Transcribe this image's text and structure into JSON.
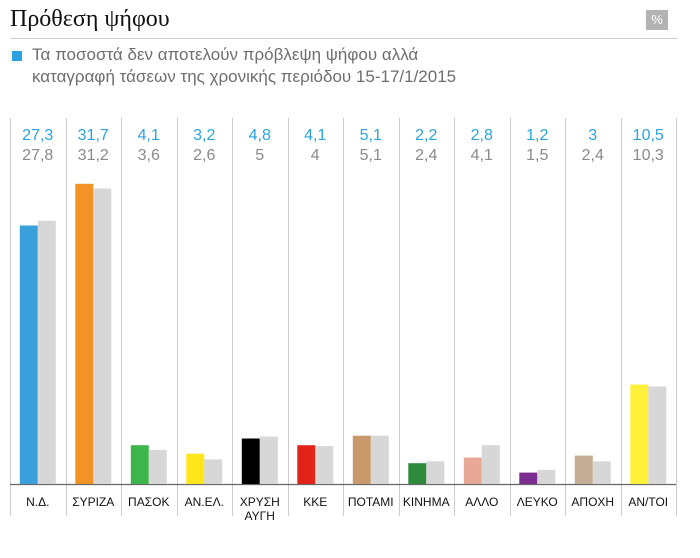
{
  "header": {
    "title": "Πρόθεση ψήφου",
    "badge": "%",
    "subtitle_line1": "Τα ποσοστά δεν αποτελούν πρόβλεψη ψήφου αλλά",
    "subtitle_line2": "καταγραφή τάσεων της χρονικής περιόδου 15-17/1/2015"
  },
  "colors": {
    "current_label": "#2aa3e0",
    "previous_label": "#8a8a8a",
    "previous_bar": "#d7d7d7",
    "grid": "#cccccc",
    "axis": "#666666"
  },
  "chart_data": {
    "type": "bar",
    "title": "Πρόθεση ψήφου",
    "ylabel": "%",
    "ylim": [
      0,
      34
    ],
    "categories": [
      "Ν.Δ.",
      "ΣΥΡΙΖΑ",
      "ΠΑΣΟΚ",
      "ΑΝ.ΕΛ.",
      "ΧΡΥΣΗ ΑΥΓΗ",
      "ΚΚΕ",
      "ΠΟΤΑΜΙ",
      "ΚΙΝΗΜΑ",
      "ΑΛΛΟ",
      "ΛΕΥΚΟ",
      "ΑΠΟΧΗ",
      "ΑΝ/ΤΟΙ"
    ],
    "category_lines": [
      [
        "Ν.Δ."
      ],
      [
        "ΣΥΡΙΖΑ"
      ],
      [
        "ΠΑΣΟΚ"
      ],
      [
        "ΑΝ.ΕΛ."
      ],
      [
        "ΧΡΥΣΗ",
        "ΑΥΓΗ"
      ],
      [
        "ΚΚΕ"
      ],
      [
        "ΠΟΤΑΜΙ"
      ],
      [
        "ΚΙΝΗΜΑ"
      ],
      [
        "ΑΛΛΟ"
      ],
      [
        "ΛΕΥΚΟ"
      ],
      [
        "ΑΠΟΧΗ"
      ],
      [
        "ΑΝ/ΤΟΙ"
      ]
    ],
    "series": [
      {
        "name": "current",
        "values": [
          27.3,
          31.7,
          4.1,
          3.2,
          4.8,
          4.1,
          5.1,
          2.2,
          2.8,
          1.2,
          3,
          10.5
        ],
        "labels": [
          "27,3",
          "31,7",
          "4,1",
          "3,2",
          "4,8",
          "4,1",
          "5,1",
          "2,2",
          "2,8",
          "1,2",
          "3",
          "10,5"
        ],
        "colors": [
          "#3aa0dc",
          "#f39325",
          "#3db54a",
          "#ffe61a",
          "#000000",
          "#e2231a",
          "#c8996a",
          "#2e8b3c",
          "#e8a898",
          "#7b2d90",
          "#c4ad94",
          "#fff03a"
        ]
      },
      {
        "name": "previous",
        "values": [
          27.8,
          31.2,
          3.6,
          2.6,
          5,
          4,
          5.1,
          2.4,
          4.1,
          1.5,
          2.4,
          10.3
        ],
        "labels": [
          "27,8",
          "31,2",
          "3,6",
          "2,6",
          "5",
          "4",
          "5,1",
          "2,4",
          "4,1",
          "1,5",
          "2,4",
          "10,3"
        ]
      }
    ]
  }
}
